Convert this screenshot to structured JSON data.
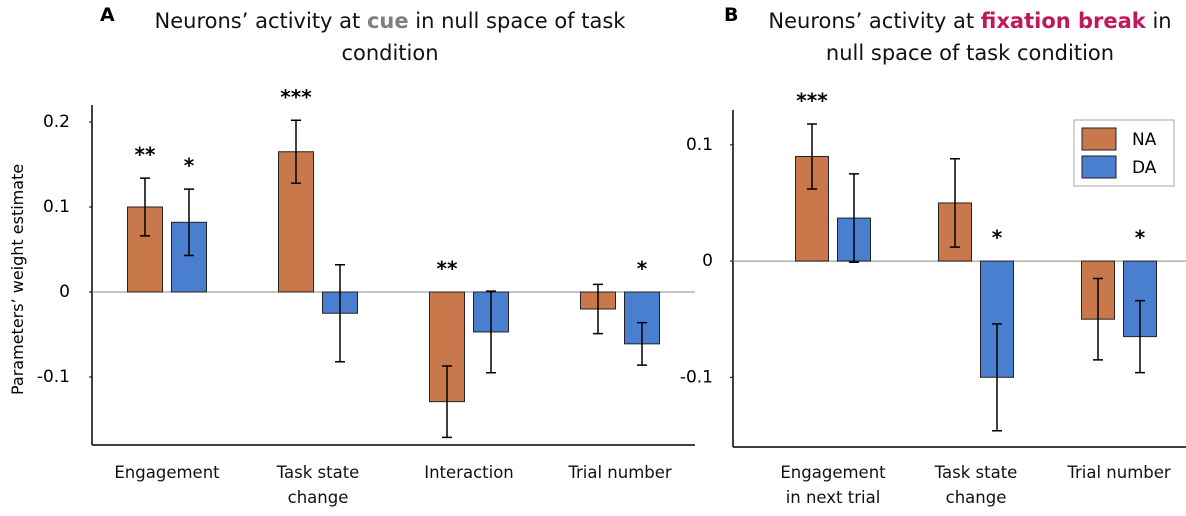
{
  "chart_data": [
    {
      "type": "bar",
      "panel": "A",
      "title_parts": [
        "Neurons’ activity at ",
        "cue",
        " in null space of task condition"
      ],
      "highlight_color": "#7f7f7f",
      "y_label": "Parameters’ weight estimate",
      "categories": [
        "Engagement",
        "Task state change",
        "Interaction",
        "Trial number"
      ],
      "series": [
        {
          "name": "NA",
          "color": "#c8784a",
          "values": [
            0.1,
            0.165,
            -0.129,
            -0.02
          ],
          "errors": [
            0.034,
            0.037,
            0.042,
            0.029
          ],
          "significance": [
            "**",
            "***",
            "**",
            null
          ]
        },
        {
          "name": "DA",
          "color": "#4a7fcf",
          "values": [
            0.082,
            -0.025,
            -0.047,
            -0.061
          ],
          "errors": [
            0.039,
            0.057,
            0.048,
            0.025
          ],
          "significance": [
            "*",
            null,
            null,
            "*"
          ]
        }
      ],
      "ylim": [
        -0.18,
        0.22
      ],
      "yticks": [
        -0.1,
        0,
        0.1,
        0.2
      ],
      "legend": false
    },
    {
      "type": "bar",
      "panel": "B",
      "title_parts": [
        "Neurons’ activity at ",
        "fixation break",
        " in null space of task condition"
      ],
      "highlight_color": "#c0185a",
      "categories": [
        "Engagement in next trial",
        "Task state change",
        "Trial number"
      ],
      "series": [
        {
          "name": "NA",
          "color": "#c8784a",
          "values": [
            0.09,
            0.05,
            -0.05
          ],
          "errors": [
            0.028,
            0.038,
            0.035
          ],
          "significance": [
            "***",
            null,
            null
          ]
        },
        {
          "name": "DA",
          "color": "#4a7fcf",
          "values": [
            0.037,
            -0.1,
            -0.065
          ],
          "errors": [
            0.038,
            0.046,
            0.031
          ],
          "significance": [
            null,
            "*",
            "*"
          ]
        }
      ],
      "ylim": [
        -0.16,
        0.13
      ],
      "yticks": [
        -0.1,
        0,
        0.1
      ],
      "legend": "upper right"
    }
  ]
}
